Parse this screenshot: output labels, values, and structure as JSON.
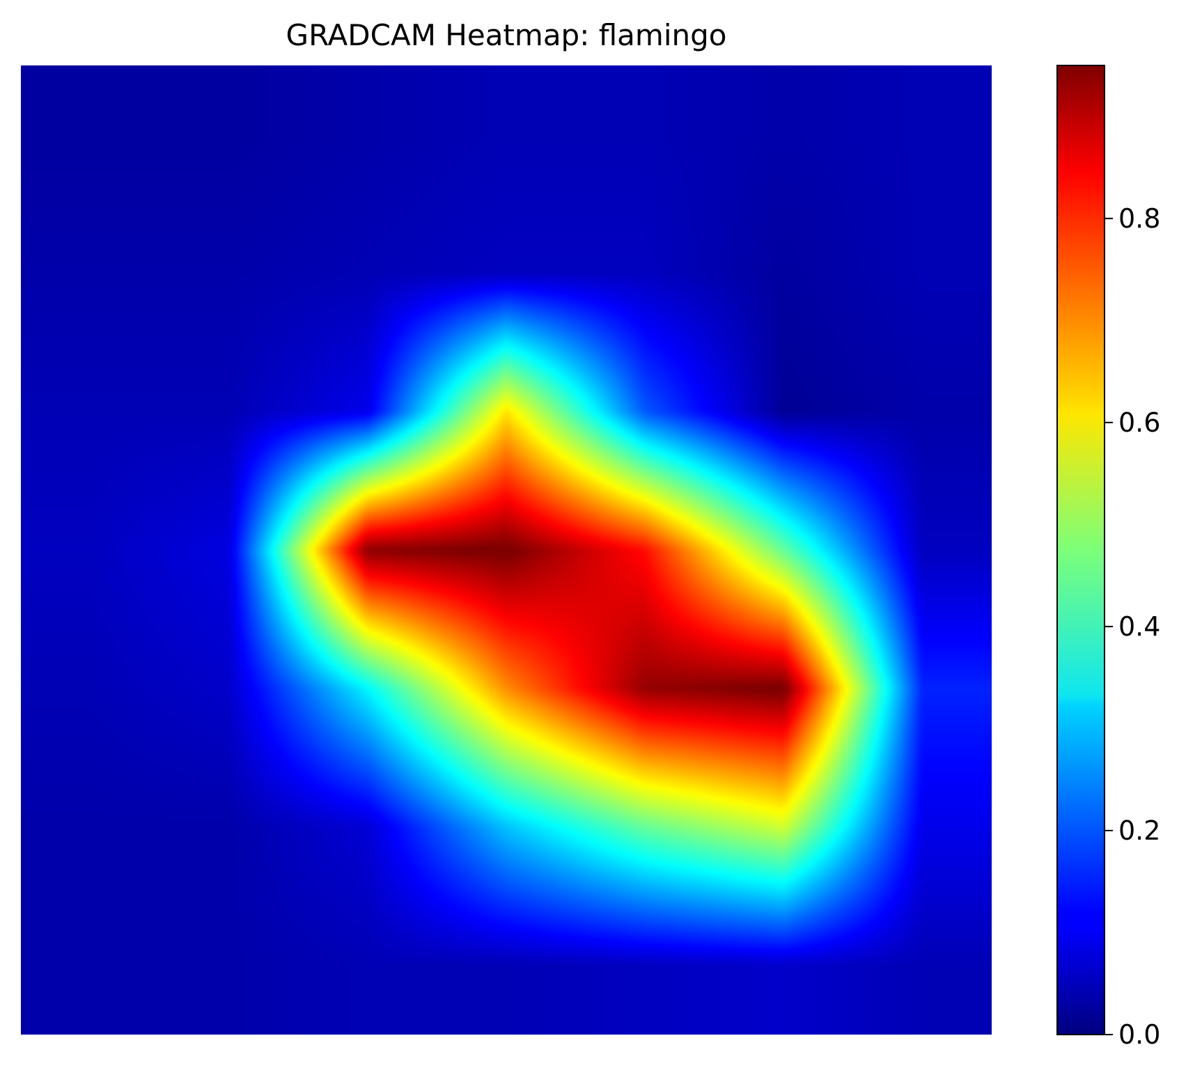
{
  "chart_data": {
    "type": "heatmap",
    "title": "GRADCAM Heatmap: flamingo",
    "xlabel": "",
    "ylabel": "",
    "axes_visible": false,
    "colormap": "jet",
    "colorbar": {
      "range": [
        0.0,
        0.95
      ],
      "ticks": [
        0.0,
        0.2,
        0.4,
        0.6,
        0.8
      ],
      "tick_labels": [
        "0.0",
        "0.2",
        "0.4",
        "0.6",
        "0.8"
      ],
      "placement": "right"
    },
    "grid_size": [
      7,
      7
    ],
    "z": [
      [
        0.03,
        0.03,
        0.04,
        0.05,
        0.05,
        0.04,
        0.05
      ],
      [
        0.04,
        0.04,
        0.05,
        0.06,
        0.06,
        0.03,
        0.05
      ],
      [
        0.05,
        0.05,
        0.1,
        0.62,
        0.2,
        0.02,
        0.04
      ],
      [
        0.06,
        0.09,
        0.94,
        0.96,
        0.82,
        0.45,
        0.06
      ],
      [
        0.05,
        0.07,
        0.35,
        0.7,
        0.93,
        0.96,
        0.15
      ],
      [
        0.04,
        0.04,
        0.08,
        0.3,
        0.45,
        0.55,
        0.1
      ],
      [
        0.04,
        0.04,
        0.05,
        0.05,
        0.06,
        0.07,
        0.05
      ]
    ]
  }
}
